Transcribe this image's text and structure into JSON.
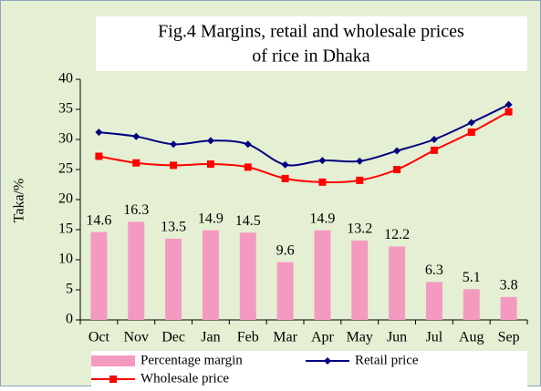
{
  "chart_data": {
    "type": "combo",
    "title": [
      "Fig.4 Margins, retail and wholesale prices",
      "of rice in Dhaka"
    ],
    "y_label": "Taka/%",
    "categories": [
      "Oct",
      "Nov",
      "Dec",
      "Jan",
      "Feb",
      "Mar",
      "Apr",
      "May",
      "Jun",
      "Jul",
      "Aug",
      "Sep"
    ],
    "series": [
      {
        "name": "Percentage margin",
        "type": "bar",
        "color": "#f49ac1",
        "values": [
          14.6,
          16.3,
          13.5,
          14.9,
          14.5,
          9.6,
          14.9,
          13.2,
          12.2,
          6.3,
          5.1,
          3.8
        ]
      },
      {
        "name": "Retail price",
        "type": "line",
        "marker": "diamond",
        "color": "#000080",
        "values": [
          31.2,
          30.5,
          29.2,
          29.8,
          29.2,
          25.8,
          26.5,
          26.4,
          28.1,
          30.0,
          32.8,
          35.8
        ]
      },
      {
        "name": "Wholesale price",
        "type": "line",
        "marker": "square",
        "color": "#ff0000",
        "values": [
          27.2,
          26.1,
          25.7,
          25.9,
          25.4,
          23.5,
          22.9,
          23.2,
          25.0,
          28.2,
          31.2,
          34.6
        ]
      }
    ],
    "ylim": [
      0,
      40
    ],
    "yticks": [
      0,
      5,
      10,
      15,
      20,
      25,
      30,
      35,
      40
    ],
    "grid": false,
    "legend": "bottom"
  }
}
